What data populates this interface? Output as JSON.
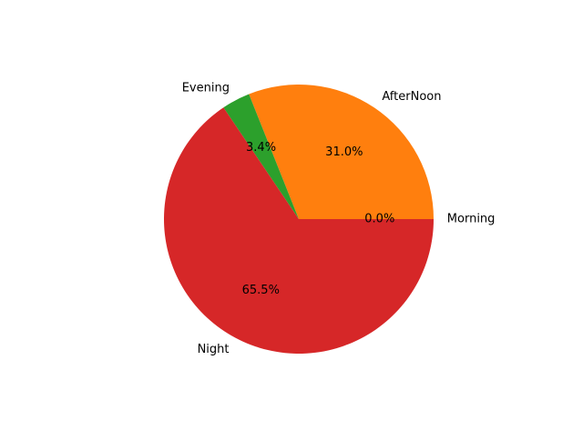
{
  "chart_data": {
    "type": "pie",
    "title": "",
    "slices": [
      {
        "label": "Morning",
        "value": 0.0,
        "pct_label": "0.0%",
        "color": "#1f77b4"
      },
      {
        "label": "AfterNoon",
        "value": 31.0,
        "pct_label": "31.0%",
        "color": "#ff7f0e"
      },
      {
        "label": "Evening",
        "value": 3.4,
        "pct_label": "3.4%",
        "color": "#2ca02c"
      },
      {
        "label": "Night",
        "value": 65.5,
        "pct_label": "65.5%",
        "color": "#d62728"
      }
    ],
    "start_angle_deg": 0,
    "direction": "counterclockwise",
    "legend": "none"
  }
}
